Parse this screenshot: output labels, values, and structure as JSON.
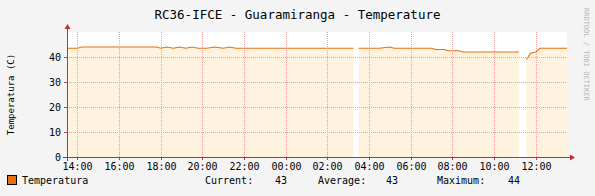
{
  "chart_data": {
    "type": "area",
    "title": "RC36-IFCE - Guaramiranga - Temperature",
    "y_label": "Temperatura (C)",
    "watermark": "RRDTOOL / TOBI OETIKER",
    "x": [
      13.5,
      14.0,
      14.2,
      15.0,
      16.0,
      17.0,
      17.8,
      18.0,
      18.3,
      18.6,
      18.9,
      19.2,
      19.5,
      19.8,
      20.2,
      20.6,
      21.0,
      21.3,
      21.6,
      22.0,
      24.0,
      26.0,
      27.25,
      27.35,
      27.5,
      28.5,
      29.0,
      29.2,
      30.0,
      31.0,
      31.2,
      31.6,
      31.8,
      32.3,
      32.5,
      34.0,
      35.2,
      35.3,
      35.55,
      35.75,
      36.0,
      36.2,
      37.0,
      37.5
    ],
    "series": [
      {
        "name": "Temperatura",
        "color": "#e8700c",
        "values": [
          43.5,
          43.5,
          44,
          44,
          44,
          44,
          44,
          43.5,
          44,
          43.5,
          44,
          43.5,
          44,
          43.5,
          43.5,
          44,
          43.5,
          44,
          43.5,
          43.5,
          43.5,
          43.5,
          43.5,
          null,
          43.5,
          43.5,
          44,
          43.5,
          43.5,
          43.5,
          43,
          43,
          42.5,
          42.5,
          42,
          42,
          42,
          null,
          39,
          41.5,
          42,
          43.5,
          43.5,
          43.5
        ]
      }
    ],
    "xlim": [
      13.5,
      37.5
    ],
    "xticks": [
      {
        "value": 14,
        "label": "14:00"
      },
      {
        "value": 16,
        "label": "16:00"
      },
      {
        "value": 18,
        "label": "18:00"
      },
      {
        "value": 20,
        "label": "20:00"
      },
      {
        "value": 22,
        "label": "22:00"
      },
      {
        "value": 24,
        "label": "00:00"
      },
      {
        "value": 26,
        "label": "02:00"
      },
      {
        "value": 28,
        "label": "04:00"
      },
      {
        "value": 30,
        "label": "06:00"
      },
      {
        "value": 32,
        "label": "08:00"
      },
      {
        "value": 34,
        "label": "10:00"
      },
      {
        "value": 36,
        "label": "12:00"
      }
    ],
    "ylim": [
      0,
      50
    ],
    "yticks": [
      0,
      10,
      20,
      30,
      40
    ],
    "grid": true,
    "legend_stats": [
      {
        "label": "Current:",
        "value": 43
      },
      {
        "label": "Average:",
        "value": 43
      },
      {
        "label": "Maximum:",
        "value": 44
      }
    ]
  }
}
